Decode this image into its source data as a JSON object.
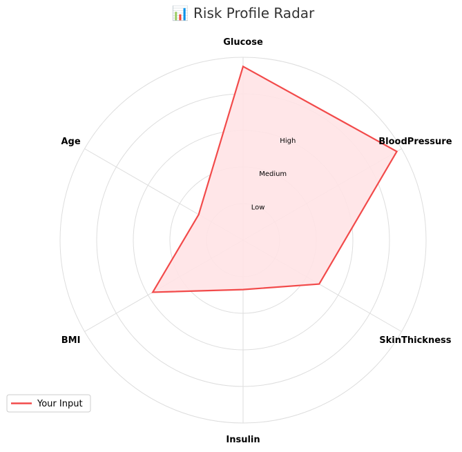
{
  "chart_data": {
    "type": "radar",
    "title": "📊 Risk Profile Radar",
    "title_icon": "chart-icon",
    "axes": [
      "Glucose",
      "BloodPressure",
      "SkinThickness",
      "Insulin",
      "BMI",
      "Age"
    ],
    "rlim": [
      0,
      1
    ],
    "rings": [
      0.2,
      0.4,
      0.6,
      0.8,
      1.0
    ],
    "ring_labels": [
      {
        "label": "Low",
        "r": 0.2
      },
      {
        "label": "Medium",
        "r": 0.4
      },
      {
        "label": "High",
        "r": 0.6
      }
    ],
    "series": [
      {
        "name": "Your Input",
        "values": [
          0.95,
          0.97,
          0.48,
          0.27,
          0.57,
          0.28
        ],
        "color": "#f24a4a",
        "fill": "#ffe3e6"
      }
    ],
    "grid": true,
    "legend_position": "lower-left"
  }
}
